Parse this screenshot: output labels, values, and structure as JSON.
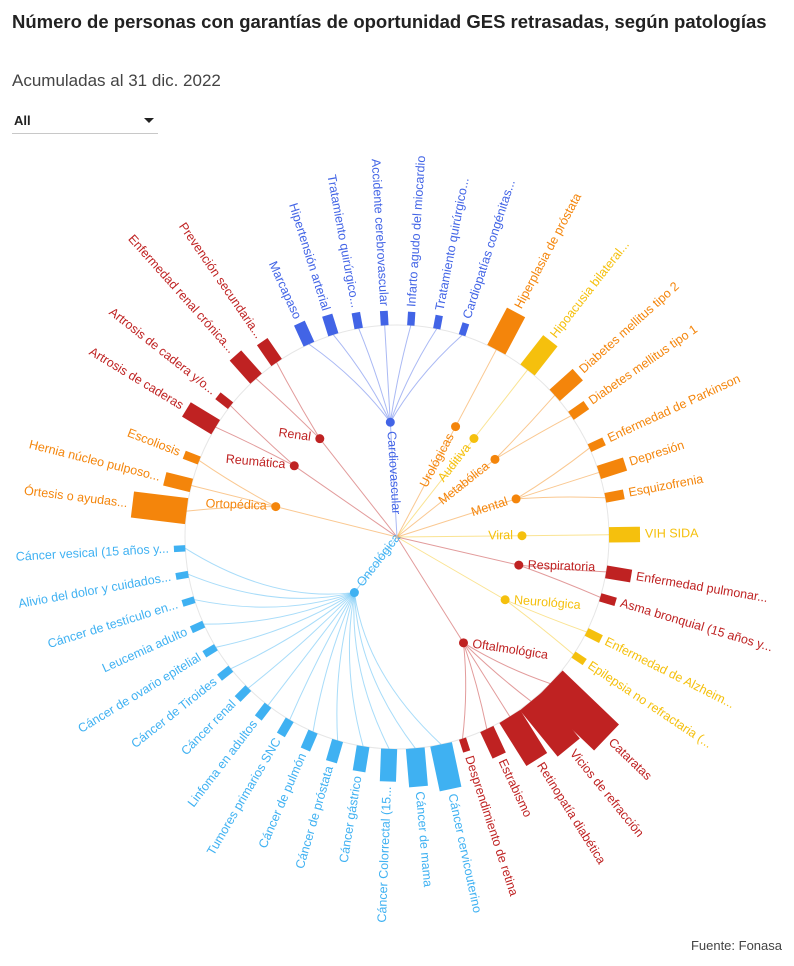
{
  "header": {
    "title": "Número de personas con garantías de oportunidad GES retrasadas, según patologías",
    "subtitle": "Acumuladas al 31 dic. 2022"
  },
  "filter": {
    "selected": "All",
    "icon": "chevron-down-icon"
  },
  "footer": {
    "source": "Fuente: Fonasa"
  },
  "chart_data": {
    "type": "radial-bar-tree",
    "colors": {
      "Oncológica": "#3fb1f2",
      "Ortopédica": "#f4850b",
      "Reumática": "#bf2222",
      "Renal": "#bf2222",
      "Cardiovascular": "#4264e6",
      "Urológicas": "#f4850b",
      "Auditiva": "#f5c00d",
      "Metabólica": "#f4850b",
      "Mental": "#f4850b",
      "Viral": "#f5c00d",
      "Respiratoria": "#bf2222",
      "Neurológica": "#f5c00d",
      "Oftalmológica": "#bf2222"
    },
    "groups": [
      {
        "name": "Oncológica",
        "items": [
          {
            "label": "Cáncer cervicouterino",
            "value": 9.5
          },
          {
            "label": "Cáncer de mama",
            "value": 6.5
          },
          {
            "label": "Cáncer Colorrectal (15...",
            "value": 4.5
          },
          {
            "label": "Cáncer gástrico",
            "value": 2.5
          },
          {
            "label": "Cáncer de próstata",
            "value": 1.8
          },
          {
            "label": "Cáncer de pulmón",
            "value": 1.3
          },
          {
            "label": "Tumores primarios SNC",
            "value": 1.0
          },
          {
            "label": "Linfoma en adultos",
            "value": 0.8
          },
          {
            "label": "Cáncer renal",
            "value": 0.7
          },
          {
            "label": "Cáncer de Tiroides",
            "value": 0.6
          },
          {
            "label": "Cáncer de ovario epitelial",
            "value": 0.5
          },
          {
            "label": "Leucemia adulto",
            "value": 0.5
          },
          {
            "label": "Cáncer de testículo en...",
            "value": 0.4
          },
          {
            "label": "Alivio del dolor y cuidados...",
            "value": 0.4
          },
          {
            "label": "Cáncer vesical (15 años y...",
            "value": 0.3
          }
        ]
      },
      {
        "name": "Ortopédica",
        "items": [
          {
            "label": "Órtesis o ayudas...",
            "value": 14
          },
          {
            "label": "Hernia núcleo pulposo...",
            "value": 3.0
          },
          {
            "label": "Escoliosis",
            "value": 0.8
          }
        ]
      },
      {
        "name": "Reumática",
        "items": [
          {
            "label": "Artrosis de caderas",
            "value": 5
          },
          {
            "label": "Artrosis de cadera y/o...",
            "value": 0.8
          }
        ]
      },
      {
        "name": "Renal",
        "items": [
          {
            "label": "Enfermedad renal crónica...",
            "value": 4
          },
          {
            "label": "Prevención secundaria...",
            "value": 2.5
          }
        ]
      },
      {
        "name": "Cardiovascular",
        "items": [
          {
            "label": "Marcapaso",
            "value": 2.0
          },
          {
            "label": "Hipertensión arterial",
            "value": 1.5
          },
          {
            "label": "Tratamiento quirúrgico...",
            "value": 0.8
          },
          {
            "label": "Accidente cerebrovascular",
            "value": 0.6
          },
          {
            "label": "Infarto agudo del miocardio",
            "value": 0.5
          },
          {
            "label": "Tratamiento quirúrgico...",
            "value": 0.5
          },
          {
            "label": "Cardiopatías congénitas...",
            "value": 0.4
          }
        ]
      },
      {
        "name": "Urológicas",
        "items": [
          {
            "label": "Hiperplasia de próstata",
            "value": 8
          }
        ]
      },
      {
        "name": "Auditiva",
        "items": [
          {
            "label": "Hipoacusia bilateral...",
            "value": 6
          }
        ]
      },
      {
        "name": "Metabólica",
        "items": [
          {
            "label": "Diabetes mellitus tipo 2",
            "value": 4
          },
          {
            "label": "Diabetes mellitus tipo 1",
            "value": 1.2
          }
        ]
      },
      {
        "name": "Mental",
        "items": [
          {
            "label": "Enfermedad de Parkinson",
            "value": 0.8
          },
          {
            "label": "Depresión",
            "value": 3.0
          },
          {
            "label": "Esquizofrenia",
            "value": 1.2
          }
        ]
      },
      {
        "name": "Viral",
        "items": [
          {
            "label": "VIH SIDA",
            "value": 4
          }
        ]
      },
      {
        "name": "Respiratoria",
        "items": [
          {
            "label": "Enfermedad pulmonar...",
            "value": 2.5
          },
          {
            "label": "Asma bronquial (15 años y...",
            "value": 0.8
          }
        ]
      },
      {
        "name": "Neurológica",
        "items": [
          {
            "label": "Enfermedad de Alzheim...",
            "value": 0.8
          },
          {
            "label": "Epilepsia no refractaria (...",
            "value": 0.5
          }
        ]
      },
      {
        "name": "Oftalmológica",
        "items": [
          {
            "label": "Cataratas",
            "value": 30
          },
          {
            "label": "Vicios de refracción",
            "value": 17
          },
          {
            "label": "Retinopatía diabética",
            "value": 12
          },
          {
            "label": "Estrabismo",
            "value": 3.5
          },
          {
            "label": "Desprendimiento de retina",
            "value": 0.5
          }
        ]
      }
    ]
  }
}
